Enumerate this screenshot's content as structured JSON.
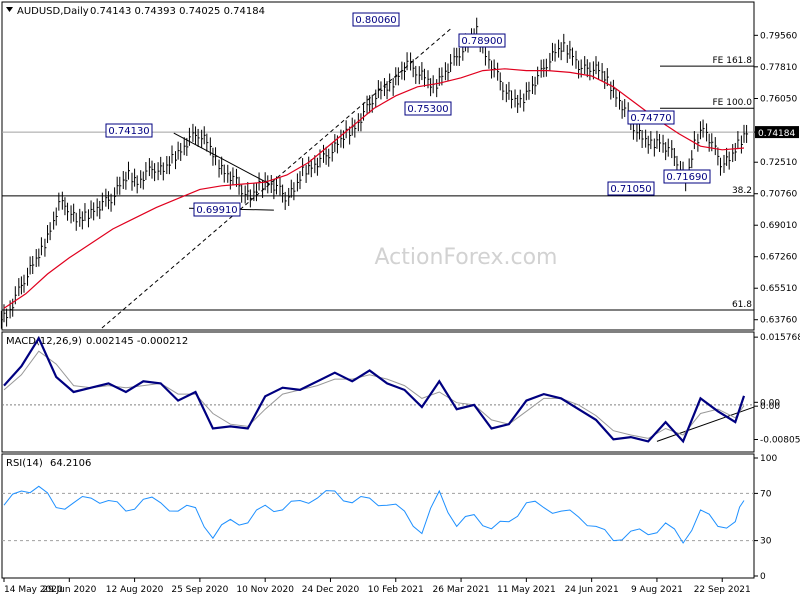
{
  "chart_data": [
    {
      "type": "line",
      "panel": "price",
      "instrument": "AUDUSD",
      "timeframe": "Daily",
      "header_title": "AUDUSD,Daily",
      "ohlc": [
        0.74143,
        0.74393,
        0.74025,
        0.74184
      ],
      "watermark": "ActionForex.com",
      "ylim": [
        0.633,
        0.813
      ],
      "y_ticks": [
        "0.79560",
        "0.77810",
        "0.76050",
        "0.74184",
        "0.72510",
        "0.70760",
        "0.69010",
        "0.67260",
        "0.65510",
        "0.63760"
      ],
      "current_price": 0.74184,
      "current_price_label": "0.74184",
      "x_ticks": [
        "14 May 2020",
        "29 Jun 2020",
        "12 Aug 2020",
        "25 Sep 2020",
        "10 Nov 2020",
        "24 Dec 2020",
        "10 Feb 2021",
        "26 Mar 2021",
        "11 May 2021",
        "24 Jun 2021",
        "9 Aug 2021",
        "22 Sep 2021"
      ],
      "series": [
        {
          "kind": "ohlc-bars",
          "color": "#000000",
          "x": [
            0,
            4,
            8,
            12,
            16,
            20,
            24,
            28,
            32,
            36,
            40,
            44,
            48,
            52,
            56,
            60,
            64,
            68,
            72,
            76,
            80,
            84,
            88,
            92,
            96,
            100,
            104,
            108,
            112,
            116,
            120,
            124,
            128,
            132,
            136,
            140,
            144,
            148,
            152,
            156,
            160,
            164,
            168,
            172,
            176,
            180,
            184,
            188,
            192,
            196,
            200,
            204,
            208,
            212,
            216,
            220,
            224,
            228,
            232,
            236,
            240,
            244,
            248,
            252,
            256,
            260,
            264,
            268,
            272,
            276,
            280,
            284,
            288,
            292,
            296,
            300,
            304,
            308,
            312,
            316,
            320,
            324,
            328,
            332,
            336,
            340
          ],
          "values": [
            0.64,
            0.65,
            0.66,
            0.668,
            0.676,
            0.688,
            0.702,
            0.7,
            0.692,
            0.695,
            0.699,
            0.702,
            0.705,
            0.712,
            0.718,
            0.714,
            0.719,
            0.722,
            0.72,
            0.727,
            0.732,
            0.738,
            0.741,
            0.736,
            0.726,
            0.72,
            0.716,
            0.71,
            0.705,
            0.712,
            0.714,
            0.711,
            0.706,
            0.709,
            0.72,
            0.723,
            0.726,
            0.73,
            0.735,
            0.741,
            0.745,
            0.752,
            0.76,
            0.765,
            0.767,
            0.774,
            0.78,
            0.776,
            0.772,
            0.766,
            0.774,
            0.779,
            0.786,
            0.791,
            0.798,
            0.785,
            0.776,
            0.767,
            0.76,
            0.758,
            0.766,
            0.772,
            0.78,
            0.786,
            0.789,
            0.785,
            0.776,
            0.778,
            0.776,
            0.77,
            0.762,
            0.754,
            0.745,
            0.738,
            0.735,
            0.737,
            0.732,
            0.726,
            0.714,
            0.735,
            0.745,
            0.735,
            0.725,
            0.726,
            0.735,
            0.742
          ]
        },
        {
          "kind": "moving-average",
          "color": "#e0001e",
          "x": [
            0,
            10,
            20,
            30,
            40,
            50,
            60,
            70,
            80,
            90,
            100,
            110,
            120,
            130,
            140,
            150,
            160,
            170,
            180,
            190,
            200,
            210,
            220,
            230,
            240,
            250,
            260,
            270,
            280,
            290,
            300,
            310,
            320,
            330,
            340
          ],
          "values": [
            0.644,
            0.652,
            0.663,
            0.672,
            0.68,
            0.688,
            0.694,
            0.7,
            0.705,
            0.71,
            0.712,
            0.713,
            0.714,
            0.718,
            0.725,
            0.735,
            0.745,
            0.755,
            0.762,
            0.767,
            0.769,
            0.772,
            0.776,
            0.777,
            0.776,
            0.776,
            0.775,
            0.773,
            0.767,
            0.758,
            0.749,
            0.741,
            0.734,
            0.732,
            0.733
          ]
        }
      ],
      "annotations": [
        {
          "label": "0.80060",
          "x": 206,
          "y": 0.8006
        },
        {
          "label": "0.78900",
          "x": 258,
          "y": 0.789
        },
        {
          "label": "0.75300",
          "x": 226,
          "y": 0.753
        },
        {
          "label": "0.74130",
          "x": 78,
          "y": 0.7413
        },
        {
          "label": "0.69910",
          "x": 108,
          "y": 0.6991
        },
        {
          "label": "0.74770",
          "x": 320,
          "y": 0.7477
        },
        {
          "label": "0.71050",
          "x": 311,
          "y": 0.7105
        },
        {
          "label": "0.71690",
          "x": 330,
          "y": 0.7169
        }
      ],
      "levels": [
        {
          "label": "FE 161.8",
          "y": 0.7785
        },
        {
          "label": "FE 100.0",
          "y": 0.7551
        },
        {
          "label": "38.2",
          "y": 0.7064
        },
        {
          "label": "61.8",
          "y": 0.643
        }
      ]
    },
    {
      "type": "line",
      "panel": "macd",
      "indicator": "MACD",
      "header_title": "MACD(12,26,9)",
      "header_values": [
        0.002145,
        -0.000212
      ],
      "ylim": [
        -0.0105,
        0.0165
      ],
      "y_ticks": [
        "0.015768",
        "0.00",
        "0.00",
        "-0.008053"
      ],
      "series": [
        {
          "kind": "macd-line",
          "color": "#000080",
          "x": [
            0,
            8,
            16,
            24,
            32,
            40,
            48,
            56,
            64,
            72,
            80,
            88,
            96,
            104,
            112,
            120,
            128,
            136,
            144,
            152,
            160,
            168,
            176,
            184,
            192,
            200,
            208,
            216,
            224,
            232,
            240,
            248,
            256,
            264,
            272,
            280,
            288,
            296,
            304,
            312,
            320,
            328,
            336,
            340
          ],
          "values": [
            0.0045,
            0.009,
            0.0155,
            0.0065,
            0.003,
            0.004,
            0.005,
            0.003,
            0.0055,
            0.005,
            0.001,
            0.003,
            -0.0055,
            -0.005,
            -0.0055,
            0.002,
            0.004,
            0.0035,
            0.0055,
            0.0075,
            0.0055,
            0.008,
            0.005,
            0.0035,
            -0.0005,
            0.0055,
            -0.001,
            0.0,
            -0.0055,
            -0.0045,
            0.001,
            0.0025,
            0.0015,
            -0.001,
            -0.0035,
            -0.008,
            -0.0075,
            -0.0085,
            -0.004,
            -0.0085,
            0.0015,
            -0.0015,
            -0.004,
            0.0021
          ]
        },
        {
          "kind": "signal-line",
          "color": "#999999",
          "x": [
            0,
            8,
            16,
            24,
            32,
            40,
            48,
            56,
            64,
            72,
            80,
            88,
            96,
            104,
            112,
            120,
            128,
            136,
            144,
            152,
            160,
            168,
            176,
            184,
            192,
            200,
            208,
            216,
            224,
            232,
            240,
            248,
            256,
            264,
            272,
            280,
            288,
            296,
            304,
            312,
            320,
            328,
            336,
            340
          ],
          "values": [
            0.0035,
            0.007,
            0.0125,
            0.0095,
            0.0045,
            0.004,
            0.0045,
            0.004,
            0.0045,
            0.005,
            0.0025,
            0.0025,
            -0.002,
            -0.0045,
            -0.005,
            -0.001,
            0.0025,
            0.0035,
            0.0045,
            0.006,
            0.006,
            0.007,
            0.006,
            0.0045,
            0.0015,
            0.003,
            0.0005,
            0.0,
            -0.0035,
            -0.0045,
            -0.0015,
            0.0015,
            0.0015,
            0.0,
            -0.0025,
            -0.006,
            -0.007,
            -0.0078,
            -0.0055,
            -0.007,
            -0.002,
            -0.001,
            -0.003,
            -0.0002
          ]
        }
      ]
    },
    {
      "type": "line",
      "panel": "rsi",
      "indicator": "RSI",
      "header_title": "RSI(14)",
      "header_value": 64.2106,
      "ylim": [
        0,
        100
      ],
      "y_ticks": [
        "100",
        "70",
        "30",
        "0"
      ],
      "series": [
        {
          "kind": "rsi",
          "color": "#1e90ff",
          "x": [
            0,
            8,
            16,
            24,
            32,
            40,
            48,
            56,
            64,
            72,
            80,
            88,
            96,
            104,
            112,
            120,
            128,
            136,
            144,
            152,
            160,
            168,
            176,
            184,
            192,
            200,
            208,
            216,
            224,
            232,
            240,
            248,
            256,
            264,
            272,
            280,
            288,
            296,
            304,
            312,
            320,
            328,
            336,
            340
          ],
          "values": [
            60,
            72,
            76,
            58,
            62,
            66,
            64,
            55,
            65,
            62,
            55,
            58,
            32,
            48,
            45,
            60,
            56,
            64,
            66,
            72,
            62,
            66,
            60,
            55,
            36,
            72,
            42,
            52,
            40,
            46,
            62,
            58,
            55,
            50,
            42,
            30,
            38,
            35,
            45,
            28,
            56,
            42,
            46,
            64
          ]
        }
      ]
    }
  ]
}
